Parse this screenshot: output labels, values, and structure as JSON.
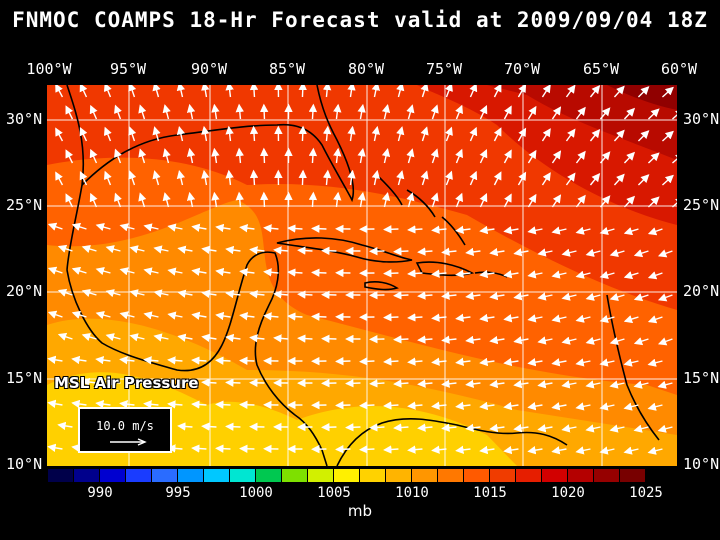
{
  "title": "FNMOC COAMPS 18-Hr Forecast valid at 2009/09/04 18Z",
  "longitude_labels": [
    "100°W",
    "95°W",
    "90°W",
    "85°W",
    "80°W",
    "75°W",
    "70°W",
    "65°W",
    "60°W"
  ],
  "latitude_labels": [
    "30°N",
    "25°N",
    "20°N",
    "15°N",
    "10°N"
  ],
  "legend": {
    "field": "MSL Air Pressure",
    "reference_vector": "10.0 m/s"
  },
  "colorbar": {
    "labels": [
      "990",
      "995",
      "1000",
      "1005",
      "1010",
      "1015",
      "1020",
      "1025"
    ],
    "units": "mb",
    "colors": [
      "#00004a",
      "#00008c",
      "#0000d0",
      "#1a3cff",
      "#2a6cff",
      "#0096ff",
      "#00c8ff",
      "#00e6d2",
      "#00c850",
      "#7ee000",
      "#d2f000",
      "#fff000",
      "#ffd200",
      "#ffb400",
      "#ff9600",
      "#ff7800",
      "#ff5a00",
      "#f03c00",
      "#e61e00",
      "#d20000",
      "#b40000",
      "#960000",
      "#780000"
    ]
  },
  "pressure_colors": {
    "p1010": "#ffd000",
    "p1012": "#ffa800",
    "p1014": "#ff8a00",
    "p1016": "#ff6200",
    "p1018": "#f03800",
    "p1020": "#d81800",
    "p1022": "#b80a00",
    "p1024": "#900000"
  }
}
